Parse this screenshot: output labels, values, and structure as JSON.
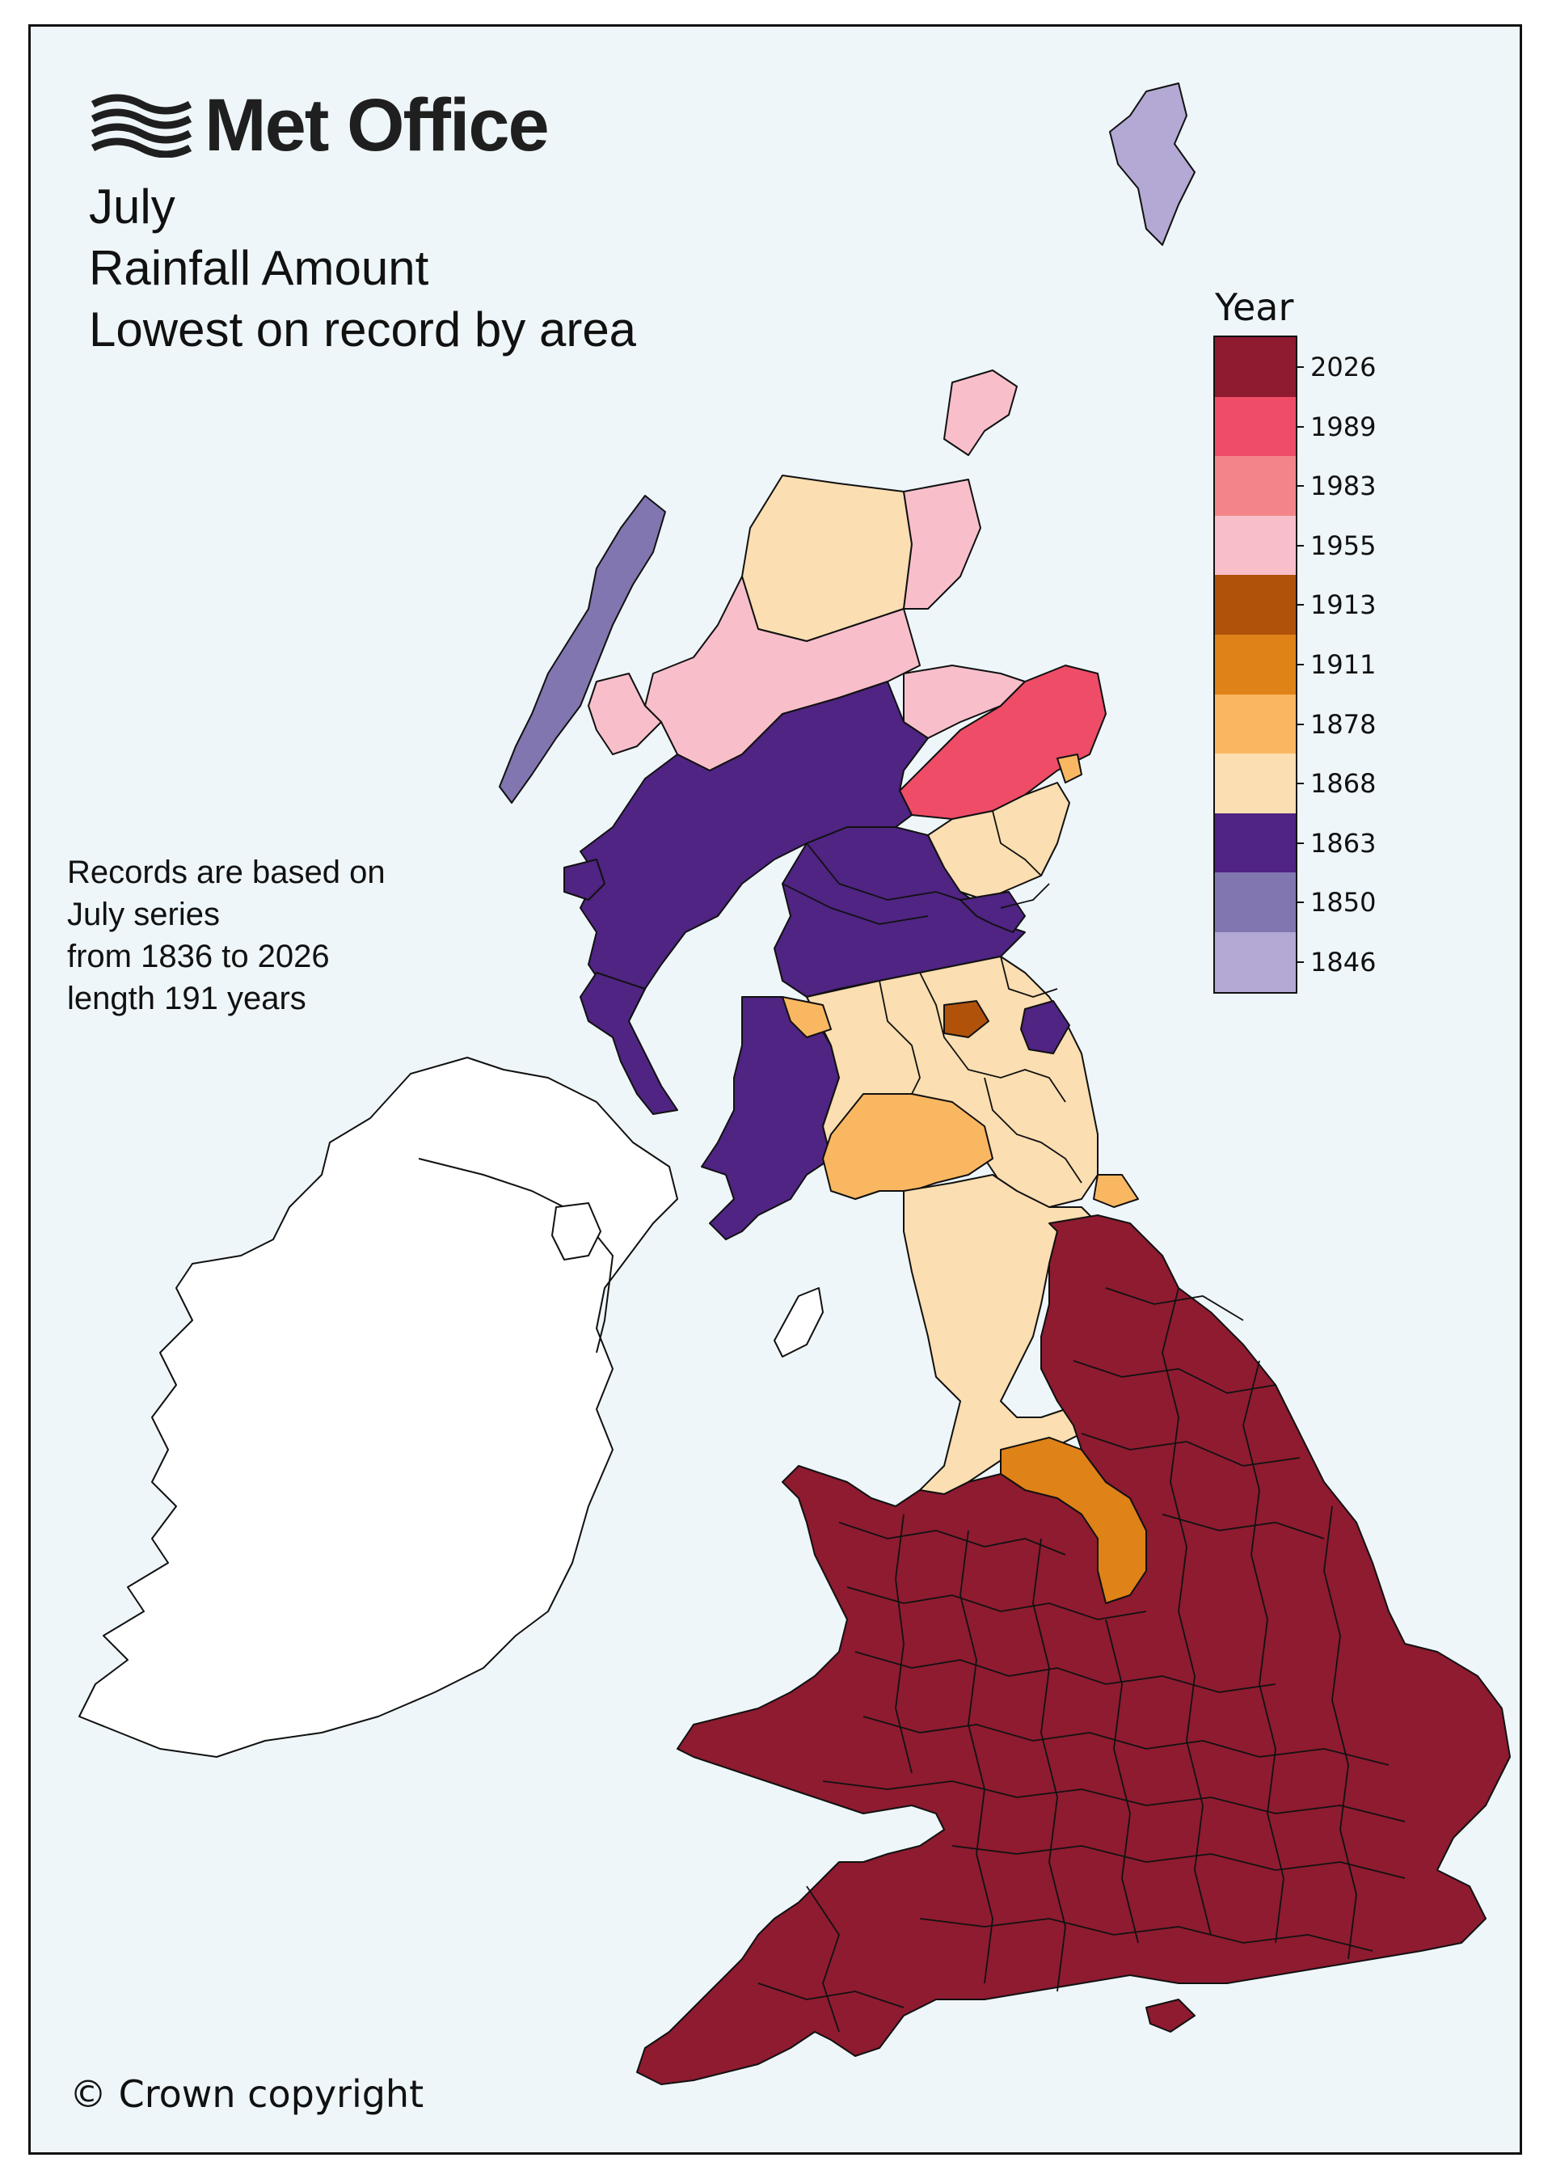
{
  "branding": {
    "logo_text": "Met Office",
    "logo_icon": "wave-lines-icon"
  },
  "header": {
    "title_line1": "July",
    "title_line2": "Rainfall Amount",
    "title_line3": "Lowest on record by area"
  },
  "note": {
    "line1": "Records are based on",
    "line2": "July series",
    "line3": "from 1836 to 2026",
    "line4": "length 191 years"
  },
  "legend": {
    "title": "Year",
    "items": [
      {
        "label": "2026",
        "color": "#8e1b30"
      },
      {
        "label": "1989",
        "color": "#ee4c67"
      },
      {
        "label": "1983",
        "color": "#f3858a"
      },
      {
        "label": "1955",
        "color": "#f8bfcb"
      },
      {
        "label": "1913",
        "color": "#b0520a"
      },
      {
        "label": "1911",
        "color": "#df8217"
      },
      {
        "label": "1878",
        "color": "#fab762"
      },
      {
        "label": "1868",
        "color": "#fbdeb1"
      },
      {
        "label": "1863",
        "color": "#4f2483"
      },
      {
        "label": "1850",
        "color": "#8176b0"
      },
      {
        "label": "1846",
        "color": "#b3a9d4"
      }
    ]
  },
  "footer": {
    "copyright": "© Crown copyright"
  },
  "colors": {
    "background": "#eef6f9",
    "ireland_fill": "#ffffff",
    "border": "#111111"
  }
}
